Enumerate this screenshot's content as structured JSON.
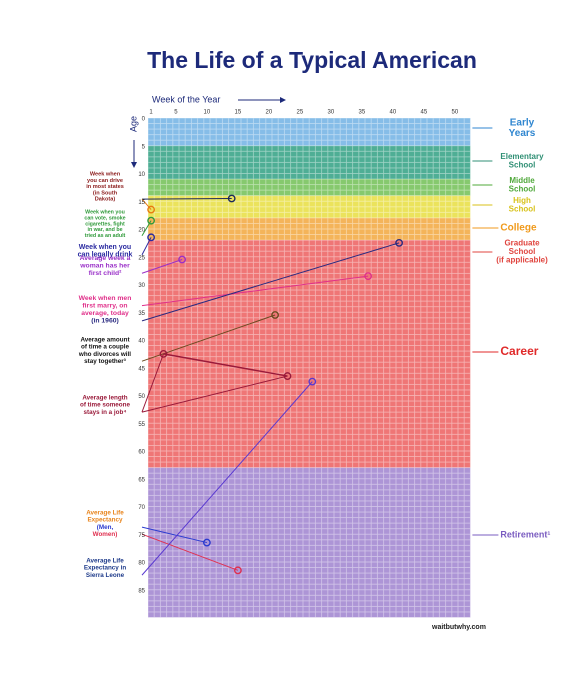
{
  "header": {
    "title": "The Life of a Typical American"
  },
  "axes": {
    "week_label": "Week of the Year",
    "age_label": "Age",
    "week_ticks": [
      1,
      5,
      10,
      15,
      20,
      25,
      30,
      35,
      40,
      45,
      50
    ],
    "age_ticks": [
      0,
      5,
      10,
      15,
      20,
      25,
      30,
      35,
      40,
      45,
      50,
      55,
      60,
      65,
      70,
      75,
      80,
      85
    ]
  },
  "bands": [
    {
      "from": 0,
      "to": 5,
      "color": "#86bde8"
    },
    {
      "from": 5,
      "to": 11,
      "color": "#4fae95"
    },
    {
      "from": 11,
      "to": 14,
      "color": "#86c96e"
    },
    {
      "from": 14,
      "to": 18,
      "color": "#ebe35c"
    },
    {
      "from": 18,
      "to": 22,
      "color": "#f4b45a"
    },
    {
      "from": 22,
      "to": 63,
      "color": "#ef7676"
    },
    {
      "from": 63,
      "to": 90,
      "color": "#ad95d6"
    }
  ],
  "side_labels": [
    {
      "lines": [
        "Early",
        "Years"
      ],
      "color": "#2f86d0"
    },
    {
      "lines": [
        "Elementary",
        "School"
      ],
      "color": "#2f8f74"
    },
    {
      "lines": [
        "Middle",
        "School"
      ],
      "color": "#4fa83a"
    },
    {
      "lines": [
        "High",
        "School"
      ],
      "color": "#d8c21a"
    },
    {
      "lines": [
        "College"
      ],
      "color": "#f09a1c"
    },
    {
      "lines": [
        "Graduate",
        "School",
        "(if applicable)"
      ],
      "color": "#e0453f"
    },
    {
      "lines": [
        "Career"
      ],
      "color": "#e02a2a"
    },
    {
      "lines": [
        "Retirement¹"
      ],
      "color": "#7a5cc0"
    }
  ],
  "annotations": [
    {
      "lines": [
        "Week when",
        "you can drive",
        "in most states",
        "(in South",
        "Dakota)"
      ],
      "color": "#8b1a1a",
      "markers": [
        {
          "week": 14,
          "age": 14,
          "color": "#1d2a5a"
        },
        {
          "week": 1,
          "age": 16,
          "color": "#e87a10"
        }
      ]
    },
    {
      "lines": [
        "Week when you",
        "can vote, smoke",
        "cigarettes, fight",
        "in war, and be",
        "tried as an adult"
      ],
      "color": "#2f9a3a",
      "markers": [
        {
          "week": 1,
          "age": 18,
          "color": "#2f9a3a"
        }
      ]
    },
    {
      "lines": [
        "Week when you",
        "can legally drink"
      ],
      "color": "#2a2aa0",
      "markers": [
        {
          "week": 1,
          "age": 21,
          "color": "#2a2aa0"
        }
      ]
    },
    {
      "lines": [
        "Average week a",
        "woman has her",
        "first child²"
      ],
      "color": "#9a30c8",
      "markers": [
        {
          "week": 6,
          "age": 25,
          "color": "#9a30c8"
        }
      ]
    },
    {
      "lines": [
        "Week when men",
        "first marry, on",
        "average, today",
        "(in 1960)"
      ],
      "color": "#e0308a",
      "markers": [
        {
          "week": 36,
          "age": 28,
          "color": "#e0308a"
        },
        {
          "week": 41,
          "age": 22,
          "color": "#2a2a80"
        }
      ]
    },
    {
      "lines": [
        "Average amount",
        "of time a couple",
        "who divorces will",
        "stay together³"
      ],
      "color": "#111111",
      "markers": [
        {
          "week": 21,
          "age": 35,
          "color": "#6b4a20"
        }
      ]
    },
    {
      "lines": [
        "Average length",
        "of time someone",
        "stays in a job⁴"
      ],
      "color": "#9a1a3a",
      "markers": [
        {
          "week": 3,
          "age": 42,
          "color": "#9a1a3a"
        },
        {
          "week": 23,
          "age": 46,
          "color": "#9a1a3a"
        }
      ]
    },
    {
      "lines": [
        "Average Life",
        "Expectancy",
        "(Men,",
        "Women)"
      ],
      "color": "#e8841c",
      "markers": [
        {
          "week": 10,
          "age": 76,
          "color": "#2a3ad0"
        },
        {
          "week": 15,
          "age": 81,
          "color": "#e03050"
        }
      ]
    },
    {
      "lines": [
        "Average Life",
        "Expectancy in",
        "Sierra Leone"
      ],
      "color": "#1d3a8a",
      "markers": [
        {
          "week": 27,
          "age": 47,
          "color": "#5a3ad0"
        }
      ]
    }
  ],
  "footer": {
    "source": "waitbutwhy.com"
  }
}
